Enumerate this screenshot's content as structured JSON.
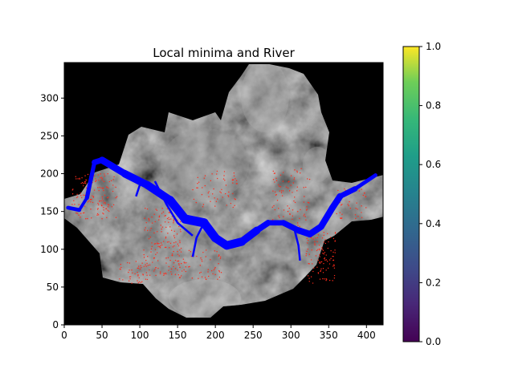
{
  "chart_data": [
    {
      "type": "heatmap",
      "title": "Local minima and River",
      "xlabel": "",
      "ylabel": "",
      "xlim": [
        0,
        422
      ],
      "ylim": [
        0,
        347
      ],
      "xticks": [
        0,
        50,
        100,
        150,
        200,
        250,
        300,
        350,
        400
      ],
      "yticks": [
        0,
        50,
        100,
        150,
        200,
        250,
        300
      ],
      "colormap": "gray",
      "background_color": "#000000",
      "grid": false,
      "overlays": [
        {
          "kind": "river",
          "color": "#0000ff",
          "centerline": [
            [
              5,
              155
            ],
            [
              20,
              152
            ],
            [
              30,
              168
            ],
            [
              40,
              215
            ],
            [
              50,
              218
            ],
            [
              80,
              200
            ],
            [
              110,
              185
            ],
            [
              140,
              165
            ],
            [
              160,
              140
            ],
            [
              185,
              135
            ],
            [
              200,
              115
            ],
            [
              215,
              105
            ],
            [
              235,
              110
            ],
            [
              255,
              125
            ],
            [
              270,
              135
            ],
            [
              290,
              135
            ],
            [
              310,
              125
            ],
            [
              325,
              120
            ],
            [
              340,
              130
            ],
            [
              355,
              155
            ],
            [
              365,
              170
            ],
            [
              385,
              180
            ],
            [
              412,
              198
            ]
          ],
          "width": [
            6,
            4,
            4,
            7,
            8,
            10,
            10,
            11,
            12,
            12,
            11,
            11,
            11,
            9,
            7,
            7,
            8,
            9,
            8,
            9,
            8,
            6,
            4
          ]
        },
        {
          "kind": "local_minima",
          "color": "#ff2a1a",
          "marker": "dot",
          "approx_count": 700
        }
      ]
    },
    {
      "type": "colorbar",
      "colormap": "viridis",
      "range": [
        0.0,
        1.0
      ],
      "ticks": [
        "0.0",
        "0.2",
        "0.4",
        "0.6",
        "0.8",
        "1.0"
      ]
    }
  ],
  "colors": {
    "river": "#0000ff",
    "minima": "#ff2a1a",
    "axes_background": "#000000"
  }
}
